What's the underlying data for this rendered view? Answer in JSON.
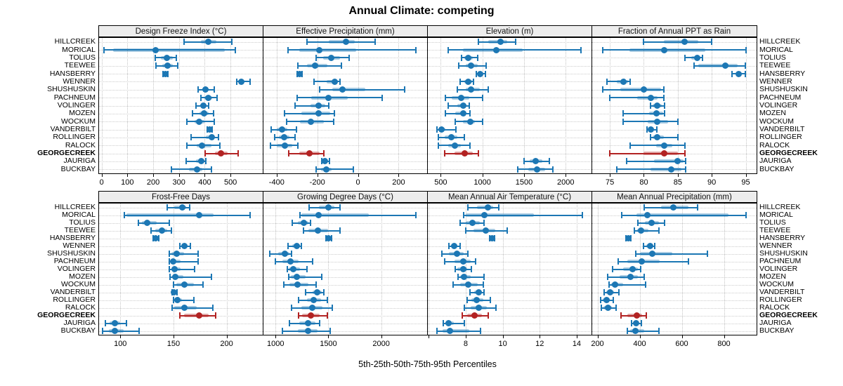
{
  "title": "Annual Climate: competing",
  "xlabel": "5th-25th-50th-75th-95th Percentiles",
  "colors": {
    "series_default": "#1c77b4",
    "series_default_band": "rgba(28,119,180,0.38)",
    "series_highlight": "#b22222",
    "series_highlight_band": "rgba(178,34,34,0.40)",
    "strip_bg": "#ededed",
    "panel_border": "#000000",
    "grid": "#c8c8c8"
  },
  "chart_data": {
    "type": "dotplot_percentiles",
    "percentiles": [
      5,
      25,
      50,
      75,
      95
    ],
    "legend_note": "5th-25th-50th-75th-95th Percentiles",
    "grid": "dotted",
    "sites": [
      "HILLCREEK",
      "MORICAL",
      "TOLIUS",
      "TEEWEE",
      "HANSBERRY",
      "WENNER",
      "SHUSHUSKIN",
      "PACHNEUM",
      "VOLINGER",
      "MOZEN",
      "WOCKUM",
      "VANDERBILT",
      "ROLLINGER",
      "RALOCK",
      "GEORGECREEK",
      "JAURIGA",
      "BUCKBAY"
    ],
    "highlight_site": "GEORGECREEK",
    "panels": [
      {
        "title": "Design Freeze Index (°C)",
        "grid_row": 0,
        "grid_col": 0,
        "axis": {
          "min": -10,
          "max": 625,
          "ticks": [
            0,
            100,
            200,
            300,
            400,
            500
          ],
          "tick_labels": [
            "0",
            "100",
            "200",
            "300",
            "400",
            "500"
          ]
        },
        "values": [
          [
            320,
            385,
            415,
            445,
            505
          ],
          [
            10,
            45,
            210,
            478,
            518
          ],
          [
            208,
            230,
            252,
            275,
            290
          ],
          [
            210,
            235,
            255,
            275,
            295
          ],
          [
            238,
            243,
            248,
            253,
            258
          ],
          [
            525,
            533,
            541,
            553,
            575
          ],
          [
            375,
            390,
            402,
            416,
            438
          ],
          [
            385,
            400,
            414,
            428,
            447
          ],
          [
            366,
            384,
            396,
            406,
            416
          ],
          [
            352,
            380,
            398,
            415,
            434
          ],
          [
            330,
            360,
            378,
            400,
            438
          ],
          [
            411,
            416,
            420,
            424,
            429
          ],
          [
            348,
            405,
            427,
            438,
            452
          ],
          [
            330,
            370,
            390,
            425,
            460
          ],
          [
            402,
            440,
            464,
            490,
            530
          ],
          [
            328,
            365,
            386,
            396,
            403
          ],
          [
            271,
            340,
            369,
            390,
            427
          ]
        ]
      },
      {
        "title": "Effective Precipitation (mm)",
        "grid_row": 0,
        "grid_col": 1,
        "axis": {
          "min": -465,
          "max": 340,
          "ticks": [
            -400,
            -200,
            0,
            200
          ],
          "tick_labels": [
            "-400",
            "-200",
            "0",
            "200"
          ]
        },
        "values": [
          [
            -250,
            -145,
            -60,
            -15,
            85
          ],
          [
            -345,
            -290,
            -190,
            -10,
            285
          ],
          [
            -205,
            -170,
            -130,
            -90,
            -42
          ],
          [
            -297,
            -250,
            -210,
            -150,
            -80
          ],
          [
            -299,
            -293,
            -287,
            -280,
            -274
          ],
          [
            -215,
            -155,
            -115,
            -100,
            -90
          ],
          [
            -187,
            -125,
            -76,
            35,
            230
          ],
          [
            -300,
            -230,
            -145,
            -50,
            120
          ],
          [
            -310,
            -233,
            -193,
            -160,
            -145
          ],
          [
            -360,
            -280,
            -193,
            -138,
            -115
          ],
          [
            -350,
            -285,
            -233,
            -167,
            -120
          ],
          [
            -426,
            -400,
            -373,
            -348,
            -302
          ],
          [
            -409,
            -389,
            -363,
            -337,
            -310
          ],
          [
            -429,
            -398,
            -360,
            -325,
            -297
          ],
          [
            -340,
            -290,
            -240,
            -190,
            -168
          ],
          [
            -179,
            -172,
            -164,
            -152,
            -139
          ],
          [
            -205,
            -182,
            -156,
            -130,
            -23
          ]
        ]
      },
      {
        "title": "Elevation (m)",
        "grid_row": 0,
        "grid_col": 2,
        "axis": {
          "min": 345,
          "max": 2310,
          "ticks": [
            500,
            1000,
            1500,
            2000
          ],
          "tick_labels": [
            "500",
            "1000",
            "1500",
            "2000"
          ]
        },
        "values": [
          [
            950,
            1070,
            1215,
            1295,
            1400
          ],
          [
            590,
            770,
            1165,
            1485,
            2185
          ],
          [
            750,
            785,
            827,
            883,
            940
          ],
          [
            715,
            800,
            865,
            940,
            1045
          ],
          [
            925,
            955,
            975,
            1000,
            1037
          ],
          [
            730,
            780,
            827,
            875,
            897
          ],
          [
            700,
            800,
            865,
            967,
            1070
          ],
          [
            560,
            630,
            745,
            840,
            1005
          ],
          [
            590,
            700,
            770,
            813,
            840
          ],
          [
            556,
            673,
            770,
            800,
            855
          ],
          [
            673,
            770,
            855,
            911,
            1005
          ],
          [
            455,
            478,
            511,
            556,
            680
          ],
          [
            472,
            548,
            630,
            700,
            785
          ],
          [
            472,
            590,
            673,
            743,
            855
          ],
          [
            548,
            668,
            785,
            883,
            948
          ],
          [
            1500,
            1570,
            1640,
            1722,
            1807
          ],
          [
            1423,
            1555,
            1653,
            1750,
            1843
          ]
        ]
      },
      {
        "title": "Fraction of Annual PPT as Rain",
        "grid_row": 0,
        "grid_col": 3,
        "axis": {
          "min": 72.4,
          "max": 96.6,
          "ticks": [
            75,
            80,
            85,
            90,
            95
          ],
          "tick_labels": [
            "75",
            "80",
            "85",
            "90",
            "95"
          ]
        },
        "values": [
          [
            80,
            83,
            86,
            88,
            90
          ],
          [
            74,
            77.9,
            83,
            89,
            95
          ],
          [
            86,
            87,
            87.9,
            88.3,
            88.6
          ],
          [
            87.4,
            88,
            92,
            93.8,
            94.9
          ],
          [
            93,
            93.6,
            94,
            94.4,
            94.9
          ],
          [
            74.6,
            76,
            77,
            77.7,
            78
          ],
          [
            74,
            76.5,
            80,
            82.5,
            83
          ],
          [
            75,
            79,
            81,
            82,
            83
          ],
          [
            81,
            81.3,
            82,
            82.6,
            83.1
          ],
          [
            77,
            80.8,
            81.9,
            82.8,
            83.1
          ],
          [
            77,
            80.6,
            82,
            83.6,
            85
          ],
          [
            80.5,
            80.8,
            81,
            81.5,
            81.9
          ],
          [
            81,
            81.3,
            82,
            83,
            85
          ],
          [
            78,
            81.8,
            83,
            84.2,
            86
          ],
          [
            75,
            80,
            83,
            85,
            86
          ],
          [
            77.5,
            81.5,
            85,
            85.8,
            86.2
          ],
          [
            76,
            81,
            84,
            85.5,
            86.2
          ]
        ]
      },
      {
        "title": "Frost-Free Days",
        "grid_row": 1,
        "grid_col": 0,
        "axis": {
          "min": 80,
          "max": 234,
          "ticks": [
            100,
            150,
            200
          ],
          "tick_labels": [
            "100",
            "150",
            "200"
          ]
        },
        "values": [
          [
            144,
            151,
            158,
            162,
            165
          ],
          [
            104,
            106,
            174,
            188,
            222
          ],
          [
            117,
            120,
            125,
            134,
            146
          ],
          [
            129,
            133,
            139,
            144,
            148
          ],
          [
            131,
            132,
            133.5,
            134.5,
            136
          ],
          [
            156,
            158,
            160,
            163,
            166
          ],
          [
            146,
            148,
            153,
            160,
            173
          ],
          [
            146,
            147.5,
            150,
            157,
            173
          ],
          [
            146,
            148,
            151,
            157,
            170
          ],
          [
            147,
            148.5,
            152,
            159,
            186
          ],
          [
            150,
            153,
            160,
            169,
            178
          ],
          [
            148.5,
            149.5,
            150.5,
            152,
            153.5
          ],
          [
            150,
            151,
            154,
            158,
            169
          ],
          [
            149,
            151,
            160,
            172,
            187
          ],
          [
            156,
            160,
            174,
            183,
            190
          ],
          [
            86,
            90,
            95,
            100,
            106
          ],
          [
            83,
            89,
            95,
            103,
            118
          ]
        ]
      },
      {
        "title": "Growing Degree Days (°C)",
        "grid_row": 1,
        "grid_col": 1,
        "axis": {
          "min": 885,
          "max": 2435,
          "ticks": [
            1000,
            1500,
            2000
          ],
          "tick_labels": [
            "1000",
            "1500",
            "2000"
          ]
        },
        "values": [
          [
            1315,
            1410,
            1500,
            1560,
            1612
          ],
          [
            1230,
            1245,
            1410,
            1880,
            2330
          ],
          [
            1155,
            1210,
            1270,
            1310,
            1332
          ],
          [
            1265,
            1310,
            1400,
            1495,
            1608
          ],
          [
            1475,
            1489,
            1503,
            1516,
            1530
          ],
          [
            1120,
            1155,
            1200,
            1231,
            1245
          ],
          [
            945,
            1022,
            1088,
            1132,
            1152
          ],
          [
            995,
            1066,
            1140,
            1220,
            1350
          ],
          [
            1110,
            1126,
            1166,
            1231,
            1300
          ],
          [
            1126,
            1144,
            1200,
            1287,
            1440
          ],
          [
            1077,
            1132,
            1210,
            1310,
            1386
          ],
          [
            1283,
            1349,
            1397,
            1437,
            1460
          ],
          [
            1220,
            1300,
            1360,
            1430,
            1492
          ],
          [
            1148,
            1243,
            1349,
            1442,
            1540
          ],
          [
            1216,
            1254,
            1331,
            1420,
            1492
          ],
          [
            1128,
            1221,
            1309,
            1375,
            1416
          ],
          [
            1062,
            1210,
            1310,
            1397,
            1515
          ]
        ]
      },
      {
        "title": "Mean Annual Air Temperature (°C)",
        "grid_row": 1,
        "grid_col": 2,
        "axis": {
          "min": 5.95,
          "max": 14.8,
          "ticks": [
            6,
            8,
            10,
            12,
            14
          ],
          "tick_labels": [
            "",
            "8",
            "10",
            "12",
            "14"
          ]
        },
        "values": [
          [
            8.1,
            8.6,
            9.2,
            9.5,
            9.8
          ],
          [
            7.9,
            8.0,
            9.0,
            11.7,
            14.3
          ],
          [
            7.7,
            8.0,
            8.35,
            8.75,
            9.0
          ],
          [
            8.0,
            8.4,
            9.1,
            9.6,
            10.25
          ],
          [
            9.3,
            9.37,
            9.42,
            9.5,
            9.56
          ],
          [
            7.1,
            7.2,
            7.37,
            7.56,
            7.7
          ],
          [
            6.7,
            7.1,
            7.53,
            7.87,
            8.1
          ],
          [
            6.85,
            7.4,
            7.85,
            8.25,
            8.55
          ],
          [
            7.43,
            7.56,
            7.87,
            8.06,
            8.3
          ],
          [
            7.6,
            7.7,
            7.9,
            8.25,
            9.0
          ],
          [
            7.3,
            7.7,
            8.13,
            8.63,
            8.95
          ],
          [
            8.23,
            8.45,
            8.69,
            8.88,
            9.0
          ],
          [
            8.06,
            8.31,
            8.6,
            8.94,
            9.32
          ],
          [
            7.94,
            8.25,
            8.69,
            9.13,
            9.64
          ],
          [
            7.8,
            8.06,
            8.48,
            8.88,
            9.22
          ],
          [
            6.78,
            6.9,
            7.08,
            7.37,
            7.94
          ],
          [
            6.46,
            6.74,
            7.14,
            8.2,
            8.8
          ]
        ]
      },
      {
        "title": "Mean Annual Precipitation (mm)",
        "grid_row": 1,
        "grid_col": 3,
        "axis": {
          "min": 175,
          "max": 955,
          "ticks": [
            200,
            400,
            600,
            800
          ],
          "tick_labels": [
            "200",
            "400",
            "600",
            "800"
          ]
        },
        "values": [
          [
            420,
            500,
            560,
            630,
            675
          ],
          [
            315,
            385,
            435,
            820,
            905
          ],
          [
            392,
            425,
            458,
            490,
            517
          ],
          [
            374,
            387,
            405,
            441,
            493
          ],
          [
            336,
            341,
            347,
            352,
            358
          ],
          [
            417,
            430,
            449,
            463,
            472
          ],
          [
            380,
            403,
            461,
            555,
            720
          ],
          [
            298,
            343,
            409,
            496,
            630
          ],
          [
            271,
            322,
            365,
            392,
            405
          ],
          [
            249,
            305,
            357,
            392,
            422
          ],
          [
            254,
            265,
            284,
            320,
            428
          ],
          [
            233,
            240,
            259,
            278,
            300
          ],
          [
            215,
            224,
            243,
            260,
            276
          ],
          [
            218,
            227,
            249,
            270,
            289
          ],
          [
            311,
            343,
            385,
            411,
            433
          ],
          [
            363,
            368,
            382,
            396,
            409
          ],
          [
            341,
            354,
            379,
            422,
            493
          ]
        ]
      }
    ]
  }
}
